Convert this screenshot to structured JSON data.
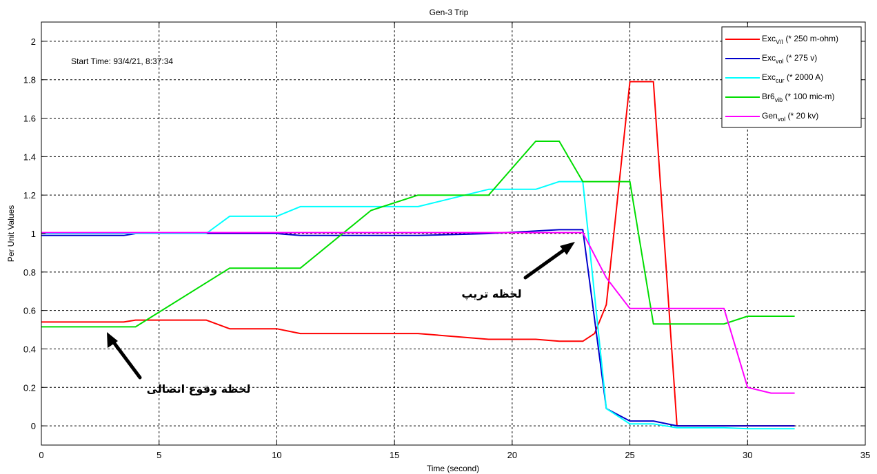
{
  "chart_data": {
    "type": "line",
    "title": "Gen-3 Trip",
    "xlabel": "Time (second)",
    "ylabel": "Per Unit Values",
    "xlim": [
      0,
      35
    ],
    "ylim": [
      -0.1,
      2.1
    ],
    "xticks": [
      0,
      5,
      10,
      15,
      20,
      25,
      30,
      35
    ],
    "yticks": [
      0,
      0.2,
      0.4,
      0.6,
      0.8,
      1,
      1.2,
      1.4,
      1.6,
      1.8,
      2
    ],
    "ytick_labels": [
      "0",
      "0.2",
      "0.4",
      "0.6",
      "0.8",
      "1",
      "1.2",
      "1.4",
      "1.6",
      "1.8",
      "2"
    ],
    "grid": true,
    "legend_position": "top-right",
    "start_time_text": "Start Time: 93/4/21, 8:37:34",
    "annotations": [
      {
        "text": "لحظه تریپ"
      },
      {
        "text": "لحظه وقوع اتصالی"
      }
    ],
    "series": [
      {
        "name_main": "Exc",
        "name_sub": "V/I",
        "name_suffix": " (* 250 m-ohm)",
        "color": "#ff0000",
        "x": [
          0,
          3.5,
          4,
          7,
          8,
          10,
          11,
          16,
          19,
          20,
          21,
          22,
          23,
          23.5,
          24,
          25,
          26,
          27,
          28,
          29,
          30,
          31,
          32
        ],
        "y": [
          0.54,
          0.54,
          0.55,
          0.55,
          0.505,
          0.505,
          0.48,
          0.48,
          0.45,
          0.45,
          0.45,
          0.44,
          0.44,
          0.48,
          0.63,
          1.79,
          1.79,
          0.0,
          0.0,
          0.0,
          0.0,
          0.0,
          0.0
        ]
      },
      {
        "name_main": "Exc",
        "name_sub": "vol",
        "name_suffix": " (* 275 v)",
        "color": "#0000cc",
        "x": [
          0,
          3.5,
          4,
          10,
          11,
          16,
          19,
          22,
          23,
          24,
          25,
          26,
          27,
          28,
          29,
          30,
          31,
          32
        ],
        "y": [
          0.99,
          0.99,
          1.0,
          1.0,
          0.99,
          0.99,
          1.0,
          1.02,
          1.02,
          0.09,
          0.025,
          0.025,
          0.0,
          0.0,
          0.0,
          0.0,
          0.0,
          0.0
        ]
      },
      {
        "name_main": "Exc",
        "name_sub": "cur",
        "name_suffix": " (* 2000 A)",
        "color": "#00ffff",
        "x": [
          0,
          7,
          8,
          10,
          11,
          16,
          19,
          20,
          21,
          22,
          23,
          24,
          25,
          26,
          27,
          29,
          30,
          31,
          32
        ],
        "y": [
          1.0,
          1.0,
          1.09,
          1.09,
          1.14,
          1.14,
          1.23,
          1.23,
          1.23,
          1.27,
          1.27,
          0.09,
          0.01,
          0.01,
          -0.01,
          -0.01,
          -0.015,
          -0.015,
          -0.015
        ]
      },
      {
        "name_main": "Br6",
        "name_sub": "vib",
        "name_suffix": " (* 100 mic-m)",
        "color": "#00dd00",
        "x": [
          0,
          4,
          8,
          11,
          14,
          16,
          19,
          21,
          22,
          23,
          25,
          26,
          29,
          30,
          32
        ],
        "y": [
          0.515,
          0.515,
          0.82,
          0.82,
          1.12,
          1.2,
          1.2,
          1.48,
          1.48,
          1.27,
          1.27,
          0.53,
          0.53,
          0.57,
          0.57
        ]
      },
      {
        "name_main": "Gen",
        "name_sub": "vol",
        "name_suffix": " (* 20 kv)",
        "color": "#ff00ff",
        "x": [
          0,
          23,
          24,
          25,
          26,
          29,
          30,
          31,
          32
        ],
        "y": [
          1.005,
          1.005,
          0.77,
          0.61,
          0.61,
          0.61,
          0.2,
          0.17,
          0.17
        ]
      }
    ]
  }
}
